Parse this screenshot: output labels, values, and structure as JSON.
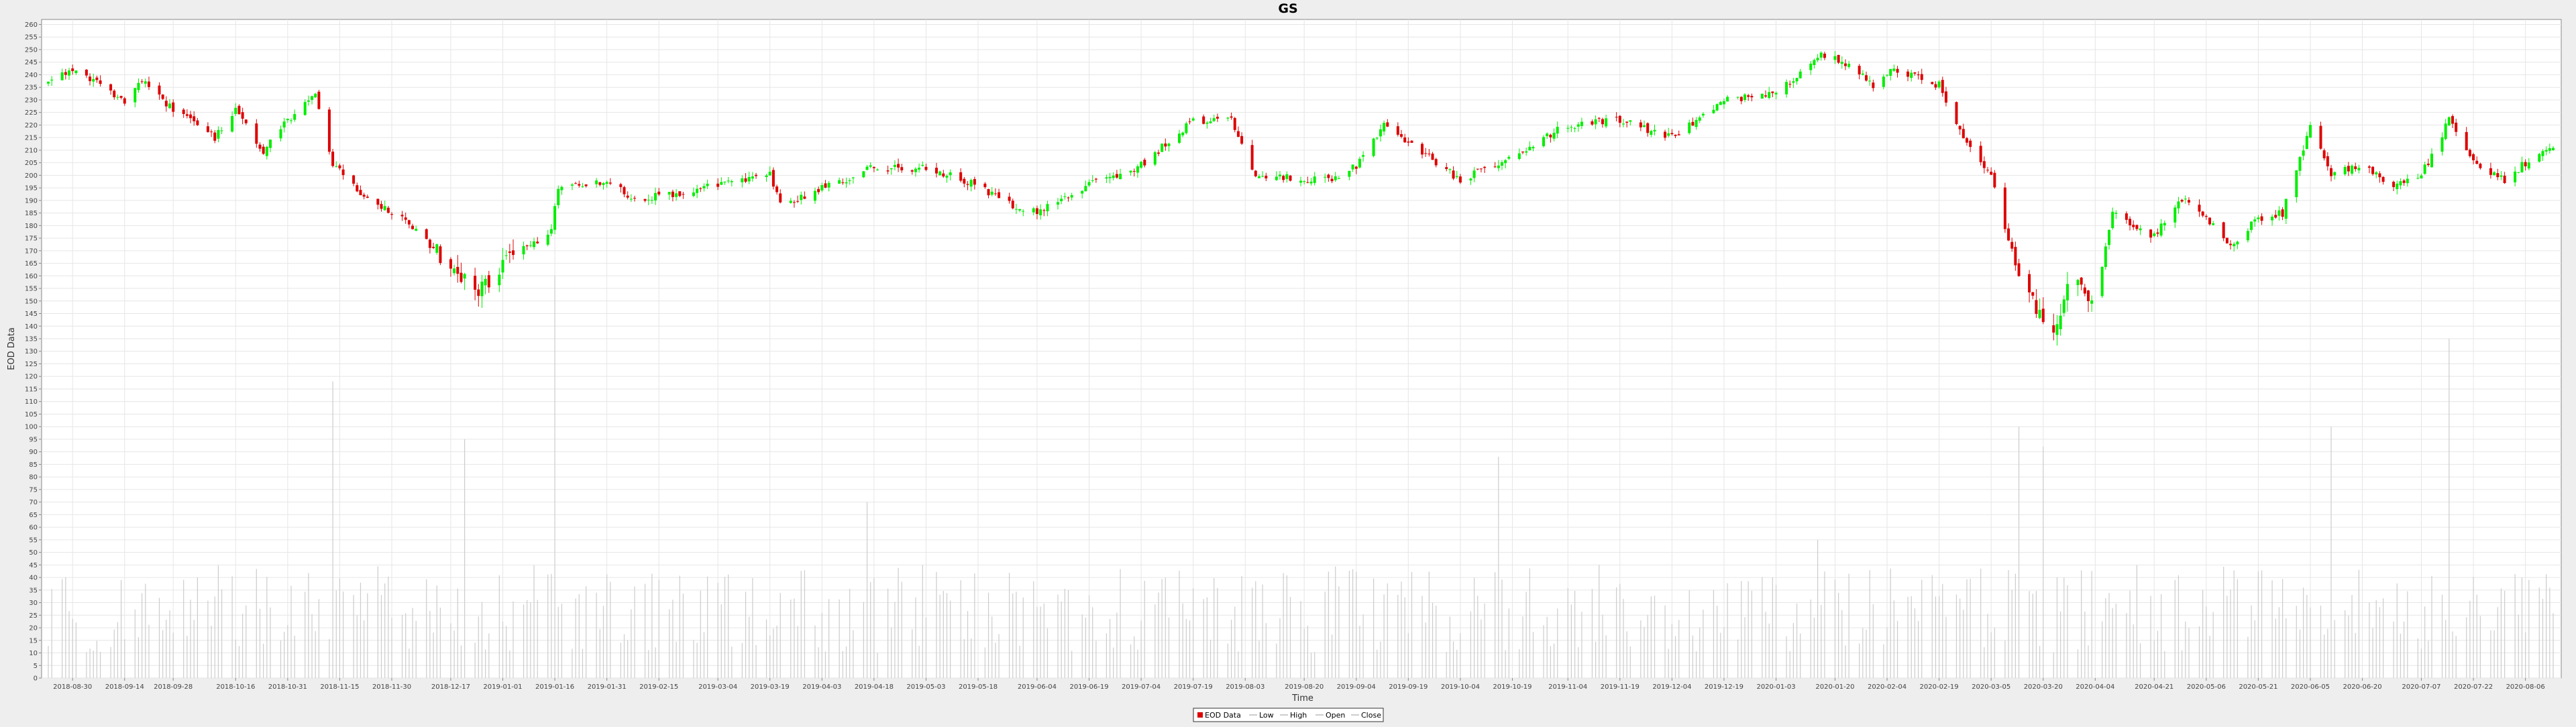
{
  "chart_data": {
    "type": "candlestick",
    "title": "GS",
    "xlabel": "Time",
    "ylabel": "EOD Data",
    "ylim": [
      0,
      262
    ],
    "y_tick_step": 5,
    "grid": true,
    "legend_placement": "bottom-center",
    "legend": [
      {
        "label": "EOD Data",
        "kind": "box",
        "color": "#dd0000"
      },
      {
        "label": "Low",
        "kind": "line",
        "color": "#999999"
      },
      {
        "label": "High",
        "kind": "line",
        "color": "#999999"
      },
      {
        "label": "Open",
        "kind": "line",
        "color": "#999999"
      },
      {
        "label": "Close",
        "kind": "line",
        "color": "#999999"
      }
    ],
    "colors": {
      "up": "#00ee00",
      "down": "#dd0000",
      "volume": "#cccccc",
      "grid": "#e6e6e6"
    },
    "x_tick_labels": [
      "2018-08-30",
      "2018-09-14",
      "2018-09-28",
      "2018-10-16",
      "2018-10-31",
      "2018-11-15",
      "2018-11-30",
      "2018-12-17",
      "2019-01-01",
      "2019-01-16",
      "2019-01-31",
      "2019-02-15",
      "2019-03-04",
      "2019-03-19",
      "2019-04-03",
      "2019-04-18",
      "2019-05-03",
      "2019-05-18",
      "2019-06-04",
      "2019-06-19",
      "2019-07-04",
      "2019-07-19",
      "2019-08-03",
      "2019-08-20",
      "2019-09-04",
      "2019-09-19",
      "2019-10-04",
      "2019-10-19",
      "2019-11-04",
      "2019-11-19",
      "2019-12-04",
      "2019-12-19",
      "2020-01-03",
      "2020-01-20",
      "2020-02-04",
      "2020-02-19",
      "2020-03-05",
      "2020-03-20",
      "2020-04-04",
      "2020-04-21",
      "2020-05-06",
      "2020-05-21",
      "2020-06-05",
      "2020-06-20",
      "2020-07-07",
      "2020-07-22",
      "2020-08-06"
    ],
    "date_range": [
      "2018-08-23",
      "2020-08-14"
    ],
    "close_path_key_points": [
      [
        "2018-08-23",
        236
      ],
      [
        "2018-08-30",
        242
      ],
      [
        "2018-09-14",
        230
      ],
      [
        "2018-09-19",
        238
      ],
      [
        "2018-09-28",
        226
      ],
      [
        "2018-10-10",
        215
      ],
      [
        "2018-10-16",
        226
      ],
      [
        "2018-10-24",
        210
      ],
      [
        "2018-11-05",
        230
      ],
      [
        "2018-11-08",
        232
      ],
      [
        "2018-11-13",
        204
      ],
      [
        "2018-11-22",
        192
      ],
      [
        "2018-12-04",
        182
      ],
      [
        "2018-12-20",
        160
      ],
      [
        "2018-12-24",
        153
      ],
      [
        "2019-01-02",
        166
      ],
      [
        "2019-01-15",
        178
      ],
      [
        "2019-01-17",
        195
      ],
      [
        "2019-01-31",
        198
      ],
      [
        "2019-02-08",
        190
      ],
      [
        "2019-03-04",
        196
      ],
      [
        "2019-03-19",
        200
      ],
      [
        "2019-03-22",
        188
      ],
      [
        "2019-04-18",
        203
      ],
      [
        "2019-05-03",
        203
      ],
      [
        "2019-05-18",
        196
      ],
      [
        "2019-06-01",
        184
      ],
      [
        "2019-06-19",
        196
      ],
      [
        "2019-07-04",
        204
      ],
      [
        "2019-07-19",
        222
      ],
      [
        "2019-07-30",
        222
      ],
      [
        "2019-08-06",
        200
      ],
      [
        "2019-08-27",
        198
      ],
      [
        "2019-09-04",
        204
      ],
      [
        "2019-09-12",
        220
      ],
      [
        "2019-10-04",
        198
      ],
      [
        "2019-10-19",
        208
      ],
      [
        "2019-11-04",
        220
      ],
      [
        "2019-11-19",
        222
      ],
      [
        "2019-12-04",
        215
      ],
      [
        "2019-12-19",
        230
      ],
      [
        "2020-01-03",
        232
      ],
      [
        "2020-01-15",
        248
      ],
      [
        "2020-01-20",
        247
      ],
      [
        "2020-01-31",
        236
      ],
      [
        "2020-02-05",
        242
      ],
      [
        "2020-02-19",
        236
      ],
      [
        "2020-02-26",
        215
      ],
      [
        "2020-03-05",
        200
      ],
      [
        "2020-03-12",
        165
      ],
      [
        "2020-03-16",
        152
      ],
      [
        "2020-03-23",
        135
      ],
      [
        "2020-03-27",
        160
      ],
      [
        "2020-04-04",
        150
      ],
      [
        "2020-04-09",
        185
      ],
      [
        "2020-04-21",
        176
      ],
      [
        "2020-04-30",
        192
      ],
      [
        "2020-05-13",
        172
      ],
      [
        "2020-05-21",
        183
      ],
      [
        "2020-05-28",
        185
      ],
      [
        "2020-06-05",
        220
      ],
      [
        "2020-06-11",
        200
      ],
      [
        "2020-06-20",
        205
      ],
      [
        "2020-06-29",
        195
      ],
      [
        "2020-07-07",
        200
      ],
      [
        "2020-07-15",
        222
      ],
      [
        "2020-07-22",
        206
      ],
      [
        "2020-07-31",
        198
      ],
      [
        "2020-08-06",
        205
      ],
      [
        "2020-08-14",
        210
      ]
    ],
    "volume_spike_points": [
      [
        "2018-11-13",
        118
      ],
      [
        "2018-12-21",
        95
      ],
      [
        "2019-01-16",
        160
      ],
      [
        "2019-04-16",
        70
      ],
      [
        "2019-10-15",
        88
      ],
      [
        "2020-01-15",
        55
      ],
      [
        "2020-03-13",
        100
      ],
      [
        "2020-03-20",
        92
      ],
      [
        "2020-06-11",
        100
      ],
      [
        "2020-07-15",
        135
      ],
      [
        "2020-08-05",
        40
      ]
    ],
    "volume_base_range": [
      10,
      45
    ]
  }
}
